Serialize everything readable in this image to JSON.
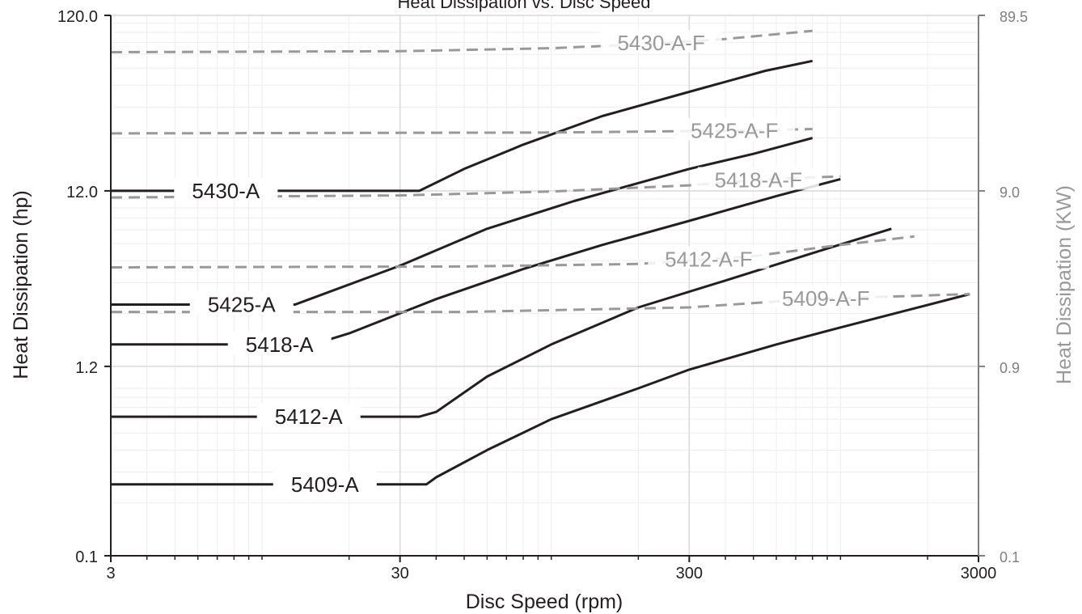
{
  "chart_data": {
    "type": "line",
    "title": "Heat Dissipation vs. Disc Speed",
    "xlabel": "Disc Speed (rpm)",
    "ylabel": "Heat Dissipation (hp)",
    "y2label": "Heat Dissipation (KW)",
    "xscale": "log",
    "yscale": "log",
    "xlim": [
      3,
      3000
    ],
    "ylim": [
      0.1,
      120.0
    ],
    "y2lim": [
      0.1,
      89.5
    ],
    "x_ticks": [
      "3",
      "30",
      "300",
      "3000"
    ],
    "y_ticks": [
      "0.1",
      "1.2",
      "12.0",
      "120.0"
    ],
    "y2_ticks": [
      "0.1",
      "0.9",
      "9.0",
      "89.5"
    ],
    "grid": true,
    "legend": "inline labels",
    "colors": {
      "solid": "#231f20",
      "dashed": "#999999",
      "axis": "#7f7f7f",
      "grid": "#d9d9d9"
    },
    "series": [
      {
        "name": "5430-A",
        "style": "solid",
        "x": [
          3,
          35,
          50,
          80,
          150,
          300,
          550,
          800
        ],
        "y": [
          12,
          12,
          16,
          22,
          32,
          44,
          58,
          66
        ]
      },
      {
        "name": "5425-A",
        "style": "solid",
        "x": [
          3,
          13,
          30,
          60,
          120,
          300,
          500,
          800
        ],
        "y": [
          2.7,
          2.7,
          4.5,
          7.3,
          10.5,
          16.0,
          19.5,
          24.0
        ]
      },
      {
        "name": "5418-A",
        "style": "solid",
        "x": [
          3,
          15,
          20,
          40,
          80,
          150,
          300,
          600,
          1000
        ],
        "y": [
          1.6,
          1.6,
          1.85,
          2.9,
          4.3,
          5.9,
          8.1,
          11.2,
          14.0
        ]
      },
      {
        "name": "5412-A",
        "style": "solid",
        "x": [
          3,
          35,
          40,
          60,
          100,
          200,
          400,
          800,
          1500
        ],
        "y": [
          0.62,
          0.62,
          0.66,
          1.05,
          1.6,
          2.6,
          3.7,
          5.3,
          7.3
        ]
      },
      {
        "name": "5409-A",
        "style": "solid",
        "x": [
          3,
          37,
          40,
          60,
          100,
          200,
          300,
          600,
          1000,
          2800
        ],
        "y": [
          0.255,
          0.255,
          0.28,
          0.4,
          0.6,
          0.9,
          1.15,
          1.6,
          2.0,
          3.1
        ]
      },
      {
        "name": "5430-A-F",
        "style": "dashed",
        "x": [
          3,
          30,
          100,
          200,
          400,
          800
        ],
        "y": [
          74,
          75,
          78,
          82,
          88,
          98
        ]
      },
      {
        "name": "5425-A-F",
        "style": "dashed",
        "x": [
          3,
          100,
          500,
          800
        ],
        "y": [
          25.5,
          25.8,
          26.5,
          27.0
        ]
      },
      {
        "name": "5418-A-F",
        "style": "dashed",
        "x": [
          3,
          30,
          100,
          300,
          600,
          1000
        ],
        "y": [
          11.0,
          11.3,
          11.9,
          12.9,
          14.1,
          14.5
        ]
      },
      {
        "name": "5412-A-F",
        "style": "dashed",
        "x": [
          3,
          50,
          200,
          500,
          1000,
          1800
        ],
        "y": [
          4.4,
          4.45,
          4.6,
          5.1,
          5.9,
          6.6
        ]
      },
      {
        "name": "5409-A-F",
        "style": "dashed",
        "x": [
          3,
          50,
          300,
          800,
          1500,
          2800
        ],
        "y": [
          2.45,
          2.45,
          2.6,
          2.9,
          3.0,
          3.1
        ]
      }
    ]
  }
}
